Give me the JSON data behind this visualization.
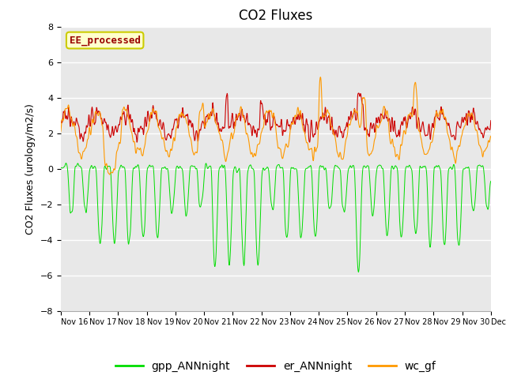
{
  "title": "CO2 Fluxes",
  "ylabel": "CO2 Fluxes (urology/m2/s)",
  "xlabel": "",
  "ylim": [
    -8,
    8
  ],
  "yticks": [
    -8,
    -6,
    -4,
    -2,
    0,
    2,
    4,
    6,
    8
  ],
  "annotation": "EE_processed",
  "legend": [
    "gpp_ANNnight",
    "er_ANNnight",
    "wc_gf"
  ],
  "colors": {
    "gpp_ANNnight": "#00dd00",
    "er_ANNnight": "#cc0000",
    "wc_gf": "#ff9900"
  },
  "background_color": "#ffffff",
  "plot_bg_color": "#e8e8e8",
  "grid_color": "#ffffff",
  "n_points": 1440,
  "title_fontsize": 12,
  "axis_fontsize": 9,
  "tick_fontsize": 8,
  "legend_fontsize": 10,
  "annotation_color": "#990000",
  "annotation_bg": "#ffffcc",
  "annotation_edge": "#cccc00"
}
